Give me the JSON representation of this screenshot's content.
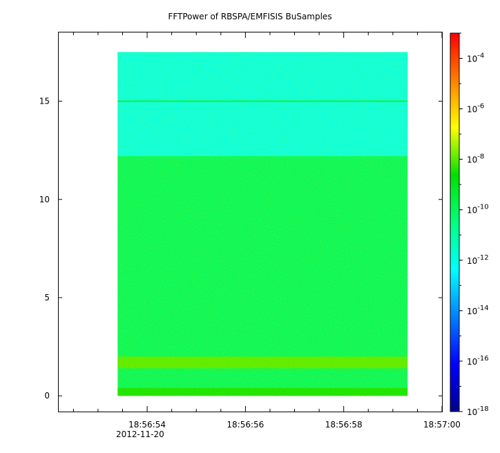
{
  "chart_data": {
    "type": "heatmap",
    "title": "FFTPower of RBSPA/EMFISIS  BuSamples",
    "xlabel": "",
    "ylabel": "",
    "x_tick_labels": [
      "18:56:54",
      "18:56:56",
      "18:56:58",
      "18:57:00"
    ],
    "x_date_label": "2012-11-20",
    "x_start": "18:56:53.4",
    "x_end": "18:56:59.3",
    "xlim": [
      "18:56:52.2",
      "18:57:00.0"
    ],
    "y_ticks": [
      0,
      5,
      10,
      15
    ],
    "ylim": [
      -0.8,
      18.5
    ],
    "y_data_range": [
      0,
      17.5
    ],
    "colorbar": {
      "scale": "log",
      "range": [
        1e-18,
        0.001
      ],
      "tick_labels": [
        {
          "base": "10",
          "exp": "-18"
        },
        {
          "base": "10",
          "exp": "-16"
        },
        {
          "base": "10",
          "exp": "-14"
        },
        {
          "base": "10",
          "exp": "-12"
        },
        {
          "base": "10",
          "exp": "-10"
        },
        {
          "base": "10",
          "exp": "-8"
        },
        {
          "base": "10",
          "exp": "-6"
        },
        {
          "base": "10",
          "exp": "-4"
        }
      ]
    },
    "bands": [
      {
        "y_range": [
          12.2,
          17.5
        ],
        "log_power": -12.0
      },
      {
        "y_range": [
          2.2,
          12.2
        ],
        "log_power": -10.0
      },
      {
        "y_range": [
          1.4,
          2.0
        ],
        "log_power": -8.0
      },
      {
        "y_range": [
          0.0,
          0.4
        ],
        "log_power": -8.5
      },
      {
        "y_line": 15.0,
        "log_power": -9.5
      }
    ]
  }
}
